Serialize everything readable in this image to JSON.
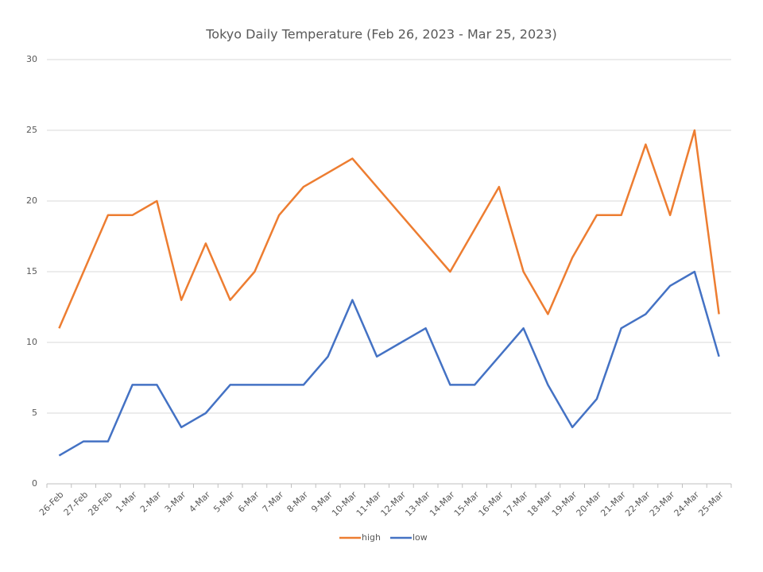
{
  "chart_data": {
    "type": "line",
    "title": "Tokyo Daily Temperature (Feb 26, 2023 - Mar 25, 2023)",
    "categories": [
      "26-Feb",
      "27-Feb",
      "28-Feb",
      "1-Mar",
      "2-Mar",
      "3-Mar",
      "4-Mar",
      "5-Mar",
      "6-Mar",
      "7-Mar",
      "8-Mar",
      "9-Mar",
      "10-Mar",
      "11-Mar",
      "12-Mar",
      "13-Mar",
      "14-Mar",
      "15-Mar",
      "16-Mar",
      "17-Mar",
      "18-Mar",
      "19-Mar",
      "20-Mar",
      "21-Mar",
      "22-Mar",
      "23-Mar",
      "24-Mar",
      "25-Mar"
    ],
    "series": [
      {
        "name": "high",
        "color": "#ed7d31",
        "values": [
          11,
          15,
          19,
          19,
          20,
          13,
          17,
          13,
          15,
          19,
          21,
          22,
          23,
          21,
          19,
          17,
          15,
          18,
          21,
          15,
          12,
          16,
          19,
          19,
          24,
          19,
          25,
          12
        ]
      },
      {
        "name": "low",
        "color": "#4472c4",
        "values": [
          2,
          3,
          3,
          7,
          7,
          4,
          5,
          7,
          7,
          7,
          7,
          9,
          13,
          9,
          10,
          11,
          7,
          7,
          9,
          11,
          7,
          4,
          6,
          11,
          12,
          14,
          15,
          9
        ]
      }
    ],
    "ylim": [
      0,
      30
    ],
    "yticks": [
      0,
      5,
      10,
      15,
      20,
      25,
      30
    ],
    "grid": true,
    "legend": "bottom"
  }
}
